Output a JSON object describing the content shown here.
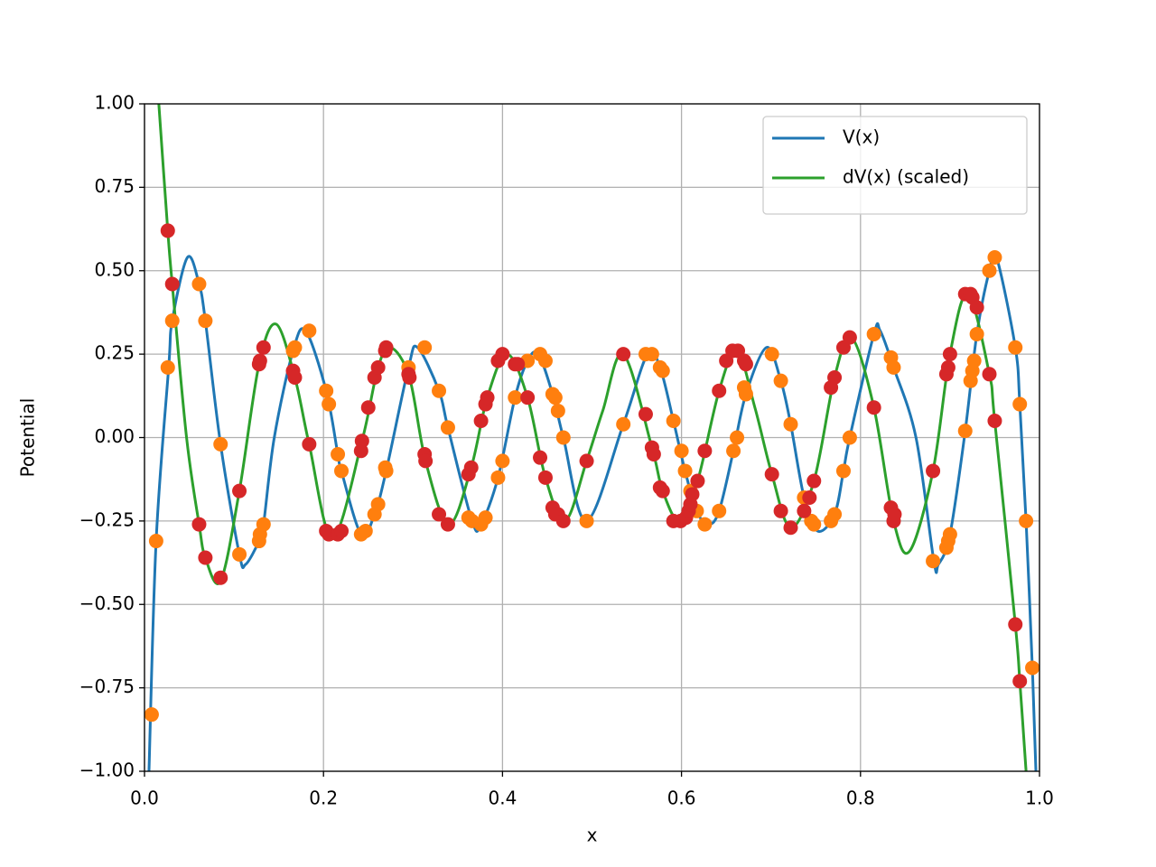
{
  "chart_data": {
    "type": "line",
    "xlabel": "x",
    "ylabel": "Potential",
    "xlim": [
      0,
      1
    ],
    "ylim": [
      -1,
      1
    ],
    "xticks": [
      {
        "value": 0,
        "label": "0.0"
      },
      0.2,
      0.4,
      0.6,
      0.8,
      {
        "value": 1,
        "label": "1.0"
      }
    ],
    "yticks": [
      {
        "value": -1,
        "label": "−1.00"
      },
      {
        "value": -0.75,
        "label": "−0.75"
      },
      {
        "value": -0.5,
        "label": "−0.50"
      },
      {
        "value": -0.25,
        "label": "−0.25"
      },
      {
        "value": 0,
        "label": "0.00"
      },
      {
        "value": 0.25,
        "label": "0.25"
      },
      {
        "value": 0.5,
        "label": "0.50"
      },
      {
        "value": 0.75,
        "label": "0.75"
      },
      {
        "value": 1,
        "label": "1.00"
      }
    ],
    "grid": true,
    "legend": "upper right",
    "series": [
      {
        "name": "V(x)",
        "color": "#1f77b4",
        "mode": "line",
        "x": [
          0.005,
          0.013,
          0.027,
          0.031,
          0.048,
          0.061,
          0.068,
          0.085,
          0.106,
          0.113,
          0.128,
          0.133,
          0.145,
          0.166,
          0.18,
          0.203,
          0.216,
          0.22,
          0.242,
          0.257,
          0.27,
          0.295,
          0.305,
          0.329,
          0.339,
          0.366,
          0.376,
          0.395,
          0.414,
          0.428,
          0.44,
          0.456,
          0.468,
          0.494,
          0.535,
          0.562,
          0.576,
          0.591,
          0.604,
          0.617,
          0.63,
          0.642,
          0.658,
          0.672,
          0.695,
          0.711,
          0.722,
          0.737,
          0.752,
          0.771,
          0.781,
          0.788,
          0.815,
          0.822,
          0.837,
          0.862,
          0.882,
          0.887,
          0.9,
          0.917,
          0.93,
          0.944,
          0.952,
          0.973,
          0.978,
          0.985,
          0.992,
          0.996
        ],
        "values": [
          -1.0,
          -0.31,
          0.21,
          0.35,
          0.54,
          0.46,
          0.35,
          -0.02,
          -0.35,
          -0.38,
          -0.31,
          -0.26,
          0.0,
          0.26,
          0.32,
          0.14,
          -0.05,
          -0.1,
          -0.29,
          -0.23,
          -0.1,
          0.21,
          0.27,
          0.14,
          0.03,
          -0.25,
          -0.26,
          -0.12,
          0.12,
          0.23,
          0.25,
          0.13,
          0.0,
          -0.25,
          0.04,
          0.25,
          0.21,
          0.05,
          -0.1,
          -0.22,
          -0.26,
          -0.22,
          -0.04,
          0.13,
          0.27,
          0.17,
          0.04,
          -0.18,
          -0.28,
          -0.23,
          -0.1,
          0.0,
          0.31,
          0.32,
          0.21,
          0.0,
          -0.37,
          -0.38,
          -0.29,
          0.02,
          0.31,
          0.5,
          0.54,
          0.27,
          0.1,
          -0.25,
          -0.69,
          -1.0
        ]
      },
      {
        "name": "dV(x) (scaled)",
        "color": "#2ca02c",
        "mode": "line",
        "x": [
          0.016,
          0.026,
          0.031,
          0.047,
          0.061,
          0.068,
          0.085,
          0.106,
          0.128,
          0.147,
          0.168,
          0.184,
          0.21,
          0.243,
          0.261,
          0.275,
          0.296,
          0.314,
          0.34,
          0.365,
          0.383,
          0.405,
          0.428,
          0.448,
          0.47,
          0.494,
          0.512,
          0.535,
          0.567,
          0.579,
          0.598,
          0.618,
          0.642,
          0.662,
          0.682,
          0.701,
          0.722,
          0.748,
          0.771,
          0.79,
          0.815,
          0.837,
          0.855,
          0.881,
          0.9,
          0.92,
          0.944,
          0.95,
          0.973,
          0.978,
          0.985
        ],
        "values": [
          1.0,
          0.62,
          0.46,
          0.0,
          -0.26,
          -0.36,
          -0.43,
          -0.16,
          0.22,
          0.34,
          0.18,
          -0.02,
          -0.3,
          -0.01,
          0.21,
          0.27,
          0.18,
          -0.07,
          -0.26,
          -0.09,
          0.12,
          0.25,
          0.12,
          -0.12,
          -0.25,
          -0.07,
          0.08,
          0.25,
          -0.03,
          -0.16,
          -0.25,
          -0.13,
          0.14,
          0.26,
          0.09,
          -0.11,
          -0.27,
          -0.13,
          0.18,
          0.3,
          0.09,
          -0.25,
          -0.34,
          -0.1,
          0.25,
          0.43,
          0.19,
          0.05,
          -0.56,
          -0.73,
          -1.0
        ]
      },
      {
        "color": "#ff7f0e",
        "mode": "markers",
        "x": [
          0.008,
          0.013,
          0.026,
          0.031,
          0.061,
          0.068,
          0.085,
          0.106,
          0.128,
          0.129,
          0.133,
          0.166,
          0.168,
          0.184,
          0.203,
          0.206,
          0.216,
          0.22,
          0.242,
          0.247,
          0.257,
          0.261,
          0.269,
          0.27,
          0.295,
          0.313,
          0.329,
          0.339,
          0.362,
          0.366,
          0.376,
          0.381,
          0.395,
          0.4,
          0.414,
          0.428,
          0.442,
          0.448,
          0.456,
          0.459,
          0.462,
          0.468,
          0.494,
          0.535,
          0.56,
          0.567,
          0.576,
          0.579,
          0.591,
          0.6,
          0.604,
          0.61,
          0.617,
          0.626,
          0.642,
          0.658,
          0.662,
          0.67,
          0.672,
          0.701,
          0.711,
          0.722,
          0.737,
          0.745,
          0.748,
          0.767,
          0.771,
          0.781,
          0.788,
          0.815,
          0.834,
          0.837,
          0.881,
          0.896,
          0.898,
          0.9,
          0.917,
          0.923,
          0.925,
          0.927,
          0.93,
          0.944,
          0.95,
          0.973,
          0.978,
          0.985,
          0.992
        ],
        "values": [
          -0.83,
          -0.31,
          0.21,
          0.35,
          0.46,
          0.35,
          -0.02,
          -0.35,
          -0.31,
          -0.29,
          -0.26,
          0.26,
          0.27,
          0.32,
          0.14,
          0.1,
          -0.05,
          -0.1,
          -0.29,
          -0.28,
          -0.23,
          -0.2,
          -0.09,
          -0.1,
          0.21,
          0.27,
          0.14,
          0.03,
          -0.24,
          -0.25,
          -0.26,
          -0.24,
          -0.12,
          -0.07,
          0.12,
          0.23,
          0.25,
          0.23,
          0.13,
          0.12,
          0.08,
          0.0,
          -0.25,
          0.04,
          0.25,
          0.25,
          0.21,
          0.2,
          0.05,
          -0.04,
          -0.1,
          -0.16,
          -0.22,
          -0.26,
          -0.22,
          -0.04,
          0.0,
          0.15,
          0.13,
          0.25,
          0.17,
          0.04,
          -0.18,
          -0.25,
          -0.26,
          -0.25,
          -0.23,
          -0.1,
          0.0,
          0.31,
          0.24,
          0.21,
          -0.37,
          -0.33,
          -0.31,
          -0.29,
          0.02,
          0.17,
          0.2,
          0.23,
          0.31,
          0.5,
          0.54,
          0.27,
          0.1,
          -0.25,
          -0.69
        ]
      },
      {
        "color": "#d62728",
        "mode": "markers",
        "x": [
          0.026,
          0.031,
          0.061,
          0.068,
          0.085,
          0.106,
          0.128,
          0.129,
          0.133,
          0.166,
          0.168,
          0.184,
          0.203,
          0.206,
          0.216,
          0.22,
          0.242,
          0.243,
          0.25,
          0.257,
          0.261,
          0.269,
          0.27,
          0.295,
          0.296,
          0.313,
          0.314,
          0.329,
          0.339,
          0.362,
          0.365,
          0.376,
          0.381,
          0.383,
          0.395,
          0.4,
          0.414,
          0.417,
          0.428,
          0.442,
          0.448,
          0.456,
          0.459,
          0.462,
          0.468,
          0.494,
          0.535,
          0.56,
          0.567,
          0.569,
          0.576,
          0.579,
          0.591,
          0.599,
          0.605,
          0.608,
          0.61,
          0.612,
          0.618,
          0.626,
          0.642,
          0.65,
          0.657,
          0.663,
          0.67,
          0.672,
          0.701,
          0.711,
          0.722,
          0.737,
          0.743,
          0.748,
          0.767,
          0.771,
          0.781,
          0.788,
          0.815,
          0.834,
          0.837,
          0.838,
          0.881,
          0.896,
          0.898,
          0.9,
          0.917,
          0.923,
          0.925,
          0.93,
          0.944,
          0.95,
          0.973,
          0.978
        ],
        "values": [
          0.62,
          0.46,
          -0.26,
          -0.36,
          -0.42,
          -0.16,
          0.22,
          0.23,
          0.27,
          0.2,
          0.18,
          -0.02,
          -0.28,
          -0.29,
          -0.29,
          -0.28,
          -0.04,
          -0.01,
          0.09,
          0.18,
          0.21,
          0.26,
          0.27,
          0.19,
          0.18,
          -0.05,
          -0.07,
          -0.23,
          -0.26,
          -0.11,
          -0.09,
          0.05,
          0.1,
          0.12,
          0.23,
          0.25,
          0.22,
          0.22,
          0.12,
          -0.06,
          -0.12,
          -0.21,
          -0.23,
          -0.23,
          -0.25,
          -0.07,
          0.25,
          0.07,
          -0.03,
          -0.05,
          -0.15,
          -0.16,
          -0.25,
          -0.25,
          -0.24,
          -0.22,
          -0.2,
          -0.17,
          -0.13,
          -0.04,
          0.14,
          0.23,
          0.26,
          0.26,
          0.23,
          0.22,
          -0.11,
          -0.22,
          -0.27,
          -0.22,
          -0.18,
          -0.13,
          0.15,
          0.18,
          0.27,
          0.3,
          0.09,
          -0.21,
          -0.25,
          -0.23,
          -0.1,
          0.19,
          0.21,
          0.25,
          0.43,
          0.43,
          0.42,
          0.39,
          0.19,
          0.05,
          -0.56,
          -0.73
        ]
      }
    ]
  }
}
